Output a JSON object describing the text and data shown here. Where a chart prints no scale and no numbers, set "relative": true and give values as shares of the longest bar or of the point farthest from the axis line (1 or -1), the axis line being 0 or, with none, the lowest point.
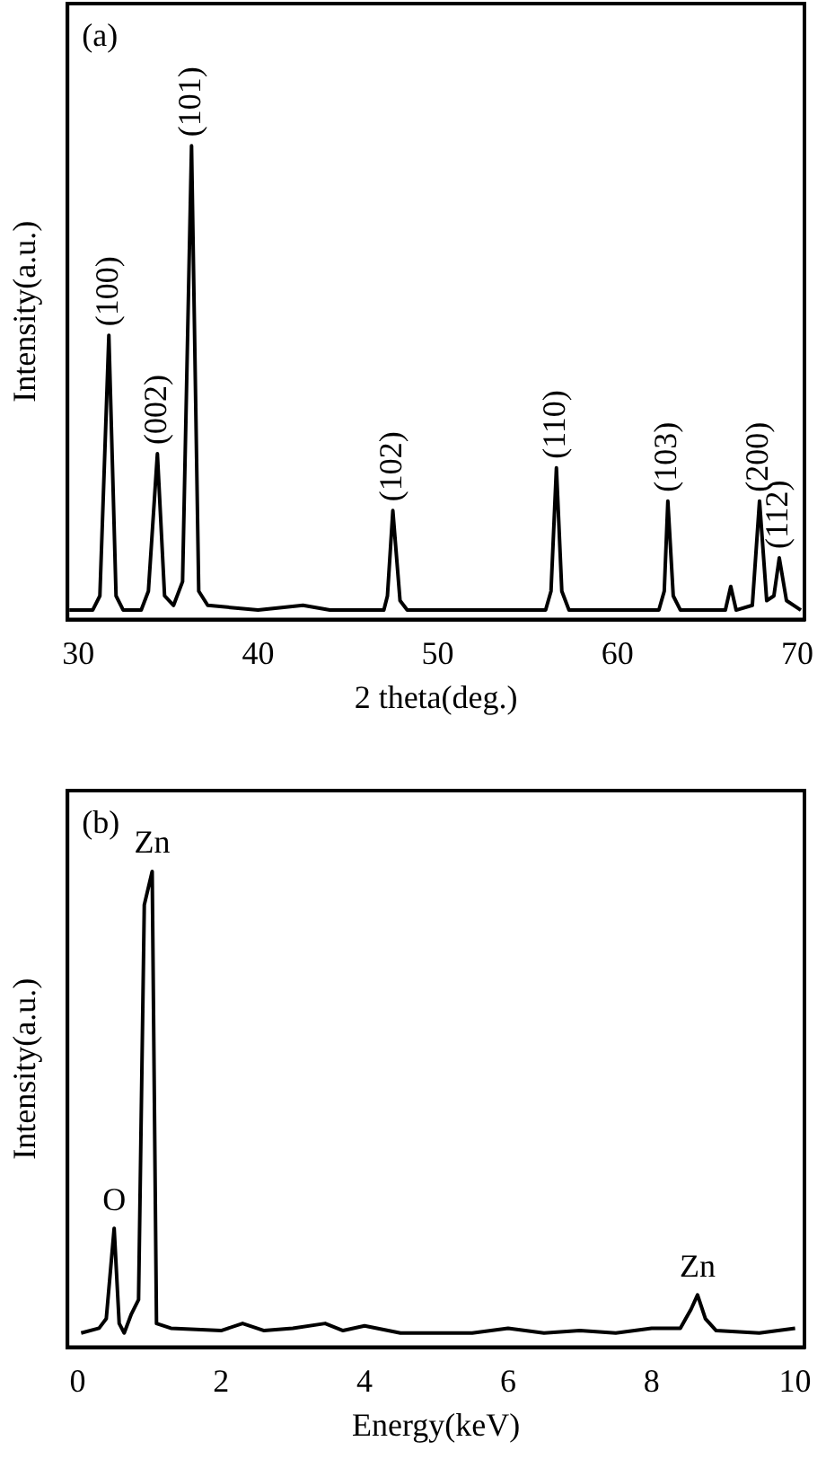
{
  "chart_data": [
    {
      "type": "line",
      "xlabel": "2 theta(deg.)",
      "ylabel": "Intensity(a.u.)",
      "relative": true,
      "xlim": [
        29.4,
        70.4
      ],
      "xticks": [
        30,
        40,
        50,
        60,
        70
      ],
      "x": [
        29.5,
        30.8,
        31.2,
        31.7,
        32.1,
        32.5,
        33.5,
        33.9,
        34.4,
        34.8,
        35.3,
        35.8,
        36.3,
        36.7,
        37.2,
        40,
        42.5,
        44,
        47,
        47.2,
        47.5,
        47.9,
        48.3,
        56,
        56.3,
        56.6,
        56.9,
        57.3,
        62.3,
        62.6,
        62.8,
        63.1,
        63.5,
        66.0,
        66.3,
        66.6,
        67.5,
        67.9,
        68.3,
        68.7,
        69.0,
        69.4,
        70.2
      ],
      "series": [
        {
          "color": "#000000",
          "values": [
            0.02,
            0.02,
            0.05,
            0.6,
            0.05,
            0.02,
            0.02,
            0.06,
            0.35,
            0.05,
            0.03,
            0.08,
            1.0,
            0.06,
            0.03,
            0.02,
            0.03,
            0.02,
            0.02,
            0.05,
            0.23,
            0.04,
            0.02,
            0.02,
            0.06,
            0.32,
            0.06,
            0.02,
            0.02,
            0.06,
            0.25,
            0.05,
            0.02,
            0.02,
            0.07,
            0.02,
            0.03,
            0.25,
            0.04,
            0.05,
            0.13,
            0.04,
            0.02
          ]
        }
      ],
      "annotations": [
        "(a)",
        {
          "text": "(100)",
          "x": 31.7,
          "y": 0.6
        },
        {
          "text": "(002)",
          "x": 34.4,
          "y": 0.35
        },
        {
          "text": "(101)",
          "x": 36.3,
          "y": 1.0
        },
        {
          "text": "(102)",
          "x": 47.5,
          "y": 0.23
        },
        {
          "text": "(110)",
          "x": 56.6,
          "y": 0.32
        },
        {
          "text": "(103)",
          "x": 62.8,
          "y": 0.25
        },
        {
          "text": "(200)",
          "x": 67.9,
          "y": 0.25
        },
        {
          "text": "(112)",
          "x": 69.0,
          "y": 0.13
        }
      ]
    },
    {
      "type": "line",
      "xlabel": "Energy(keV)",
      "ylabel": "Intensity(a.u.)",
      "relative": true,
      "xlim": [
        -0.14,
        10.13
      ],
      "xticks": [
        0,
        2,
        4,
        6,
        8,
        10
      ],
      "x": [
        0.05,
        0.3,
        0.4,
        0.51,
        0.58,
        0.65,
        0.75,
        0.85,
        0.93,
        1.04,
        1.1,
        1.3,
        2.0,
        2.3,
        2.6,
        3.0,
        3.45,
        3.7,
        4.0,
        4.5,
        5.0,
        5.5,
        6.0,
        6.5,
        7.0,
        7.5,
        8.0,
        8.4,
        8.55,
        8.64,
        8.75,
        8.9,
        9.5,
        10.0
      ],
      "series": [
        {
          "color": "#000000",
          "values": [
            0.03,
            0.04,
            0.06,
            0.25,
            0.05,
            0.03,
            0.07,
            0.1,
            0.93,
            1.0,
            0.05,
            0.04,
            0.035,
            0.05,
            0.035,
            0.04,
            0.05,
            0.035,
            0.045,
            0.03,
            0.03,
            0.03,
            0.04,
            0.03,
            0.035,
            0.03,
            0.04,
            0.04,
            0.08,
            0.11,
            0.06,
            0.035,
            0.03,
            0.04
          ]
        }
      ],
      "annotations": [
        "(b)",
        {
          "text": "O",
          "x": 0.51,
          "y": 0.25
        },
        {
          "text": "Zn",
          "x": 1.04,
          "y": 1.0
        },
        {
          "text": "Zn",
          "x": 8.64,
          "y": 0.11
        }
      ]
    }
  ]
}
